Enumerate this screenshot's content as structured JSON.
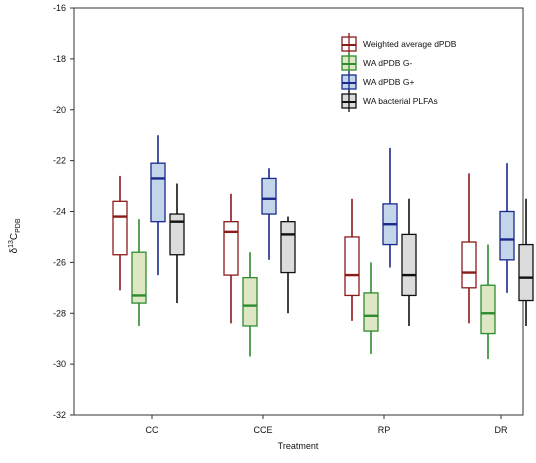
{
  "chart_data": {
    "type": "boxplot",
    "xlabel": "Treatment",
    "ylabel": {
      "prefix": "δ",
      "superscript": "13",
      "main": "C",
      "subscript": "PDB"
    },
    "ylim": [
      -32,
      -16
    ],
    "yticks": [
      -32,
      -30,
      -28,
      -26,
      -24,
      -22,
      -20,
      -18,
      -16
    ],
    "categories": [
      "CC",
      "CCE",
      "RP",
      "DR"
    ],
    "legend_position": "top-right",
    "series": [
      {
        "name": "Weighted average dPDB",
        "edge_color": "#8b1a1a",
        "fill_color": "#ffffff",
        "boxes": [
          {
            "min": -27.1,
            "q1": -25.7,
            "median": -24.2,
            "q3": -23.6,
            "max": -22.6
          },
          {
            "min": -28.4,
            "q1": -26.5,
            "median": -24.8,
            "q3": -24.4,
            "max": -23.3
          },
          {
            "min": -28.3,
            "q1": -27.3,
            "median": -26.5,
            "q3": -25.0,
            "max": -23.5
          },
          {
            "min": -28.4,
            "q1": -27.0,
            "median": -26.4,
            "q3": -25.2,
            "max": -22.5
          }
        ]
      },
      {
        "name": "WA dPDB G-",
        "edge_color": "#2e8b2e",
        "fill_color": "#dde7c3",
        "boxes": [
          {
            "min": -28.5,
            "q1": -27.6,
            "median": -27.3,
            "q3": -25.6,
            "max": -24.3
          },
          {
            "min": -29.7,
            "q1": -28.5,
            "median": -27.7,
            "q3": -26.6,
            "max": -25.6
          },
          {
            "min": -29.6,
            "q1": -28.7,
            "median": -28.1,
            "q3": -27.2,
            "max": -26.0
          },
          {
            "min": -29.8,
            "q1": -28.8,
            "median": -28.0,
            "q3": -26.9,
            "max": -25.3
          }
        ]
      },
      {
        "name": "WA dPDB G+",
        "edge_color": "#1a2a8c",
        "fill_color": "#c3d5ea",
        "boxes": [
          {
            "min": -26.5,
            "q1": -24.4,
            "median": -22.7,
            "q3": -22.1,
            "max": -21.0
          },
          {
            "min": -25.9,
            "q1": -24.1,
            "median": -23.5,
            "q3": -22.7,
            "max": -22.3
          },
          {
            "min": -26.2,
            "q1": -25.3,
            "median": -24.5,
            "q3": -23.7,
            "max": -21.5
          },
          {
            "min": -27.2,
            "q1": -25.9,
            "median": -25.1,
            "q3": -24.0,
            "max": -22.1
          }
        ]
      },
      {
        "name": "WA bacterial PLFAs",
        "edge_color": "#111111",
        "fill_color": "#dcdcdc",
        "boxes": [
          {
            "min": -27.6,
            "q1": -25.7,
            "median": -24.4,
            "q3": -24.1,
            "max": -22.9
          },
          {
            "min": -28.0,
            "q1": -26.4,
            "median": -24.9,
            "q3": -24.4,
            "max": -24.2
          },
          {
            "min": -28.5,
            "q1": -27.3,
            "median": -26.5,
            "q3": -24.9,
            "max": -23.5
          },
          {
            "min": -28.5,
            "q1": -27.5,
            "median": -26.6,
            "q3": -25.3,
            "max": -23.5
          }
        ]
      }
    ]
  }
}
